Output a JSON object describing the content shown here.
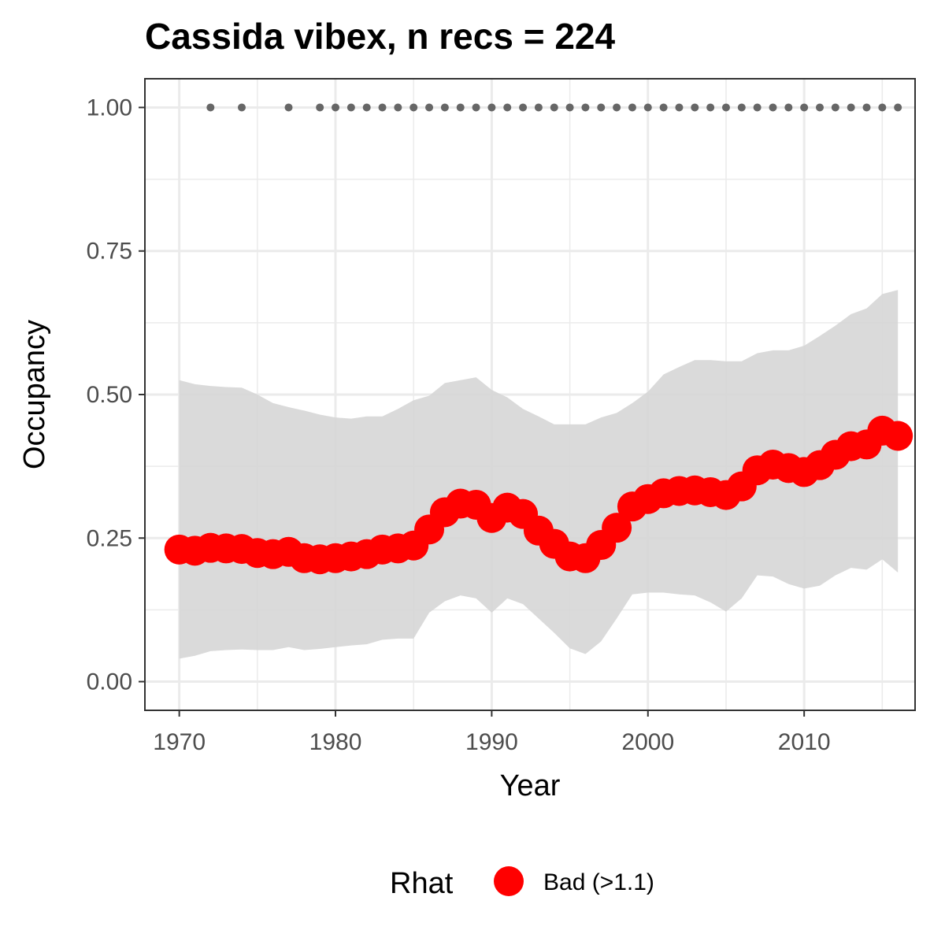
{
  "chart_data": {
    "type": "line",
    "title": "Cassida vibex, n recs = 224",
    "xlabel": "Year",
    "ylabel": "Occupancy",
    "xlim": [
      1967.8,
      2017.1
    ],
    "ylim": [
      -0.05,
      1.05
    ],
    "x_ticks": [
      1970,
      1980,
      1990,
      2000,
      2010
    ],
    "x_tick_labels": [
      "1970",
      "1980",
      "1990",
      "2000",
      "2010"
    ],
    "y_ticks": [
      0,
      0.25,
      0.5,
      0.75,
      1.0
    ],
    "y_tick_labels": [
      "0.00",
      "0.25",
      "0.50",
      "0.75",
      "1.00"
    ],
    "grid": true,
    "legend": {
      "title": "Rhat",
      "position": "bottom",
      "entries": [
        "Bad (>1.1)"
      ]
    },
    "colors": {
      "mean": "#ff0000",
      "ribbon": "#d6d6d6",
      "records": "#666666",
      "grid": "#ebebeb",
      "border": "#333333"
    },
    "series": [
      {
        "name": "Bad (>1.1)",
        "x": [
          1970,
          1971,
          1972,
          1973,
          1974,
          1975,
          1976,
          1977,
          1978,
          1979,
          1980,
          1981,
          1982,
          1983,
          1984,
          1985,
          1986,
          1987,
          1988,
          1989,
          1990,
          1991,
          1992,
          1993,
          1994,
          1995,
          1996,
          1997,
          1998,
          1999,
          2000,
          2001,
          2002,
          2003,
          2004,
          2005,
          2006,
          2007,
          2008,
          2009,
          2010,
          2011,
          2012,
          2013,
          2014,
          2015,
          2016
        ],
        "values": [
          0.23,
          0.228,
          0.233,
          0.232,
          0.231,
          0.224,
          0.222,
          0.226,
          0.215,
          0.213,
          0.215,
          0.218,
          0.222,
          0.23,
          0.232,
          0.237,
          0.265,
          0.295,
          0.31,
          0.308,
          0.285,
          0.303,
          0.292,
          0.263,
          0.24,
          0.218,
          0.215,
          0.238,
          0.268,
          0.305,
          0.318,
          0.328,
          0.332,
          0.333,
          0.33,
          0.325,
          0.34,
          0.368,
          0.378,
          0.372,
          0.365,
          0.377,
          0.395,
          0.41,
          0.413,
          0.437,
          0.428
        ],
        "lower": [
          0.04,
          0.045,
          0.053,
          0.055,
          0.056,
          0.055,
          0.055,
          0.06,
          0.055,
          0.057,
          0.06,
          0.063,
          0.065,
          0.073,
          0.075,
          0.075,
          0.12,
          0.14,
          0.15,
          0.145,
          0.12,
          0.145,
          0.135,
          0.11,
          0.085,
          0.058,
          0.048,
          0.07,
          0.11,
          0.152,
          0.155,
          0.155,
          0.152,
          0.15,
          0.138,
          0.122,
          0.145,
          0.185,
          0.183,
          0.17,
          0.162,
          0.167,
          0.185,
          0.198,
          0.195,
          0.213,
          0.19
        ],
        "upper": [
          0.525,
          0.518,
          0.515,
          0.513,
          0.512,
          0.5,
          0.485,
          0.478,
          0.472,
          0.465,
          0.46,
          0.458,
          0.462,
          0.462,
          0.475,
          0.49,
          0.498,
          0.52,
          0.525,
          0.53,
          0.508,
          0.495,
          0.475,
          0.462,
          0.448,
          0.448,
          0.448,
          0.46,
          0.468,
          0.485,
          0.505,
          0.535,
          0.548,
          0.56,
          0.56,
          0.558,
          0.558,
          0.572,
          0.577,
          0.577,
          0.585,
          0.602,
          0.62,
          0.64,
          0.65,
          0.675,
          0.682
        ]
      }
    ],
    "records": {
      "x": [
        1972,
        1974,
        1977,
        1979,
        1980,
        1981,
        1982,
        1983,
        1984,
        1985,
        1986,
        1987,
        1988,
        1989,
        1990,
        1991,
        1992,
        1993,
        1994,
        1995,
        1996,
        1997,
        1998,
        1999,
        2000,
        2001,
        2002,
        2003,
        2004,
        2005,
        2006,
        2007,
        2008,
        2009,
        2010,
        2011,
        2012,
        2013,
        2014,
        2015,
        2016
      ],
      "y": 1.0
    }
  }
}
